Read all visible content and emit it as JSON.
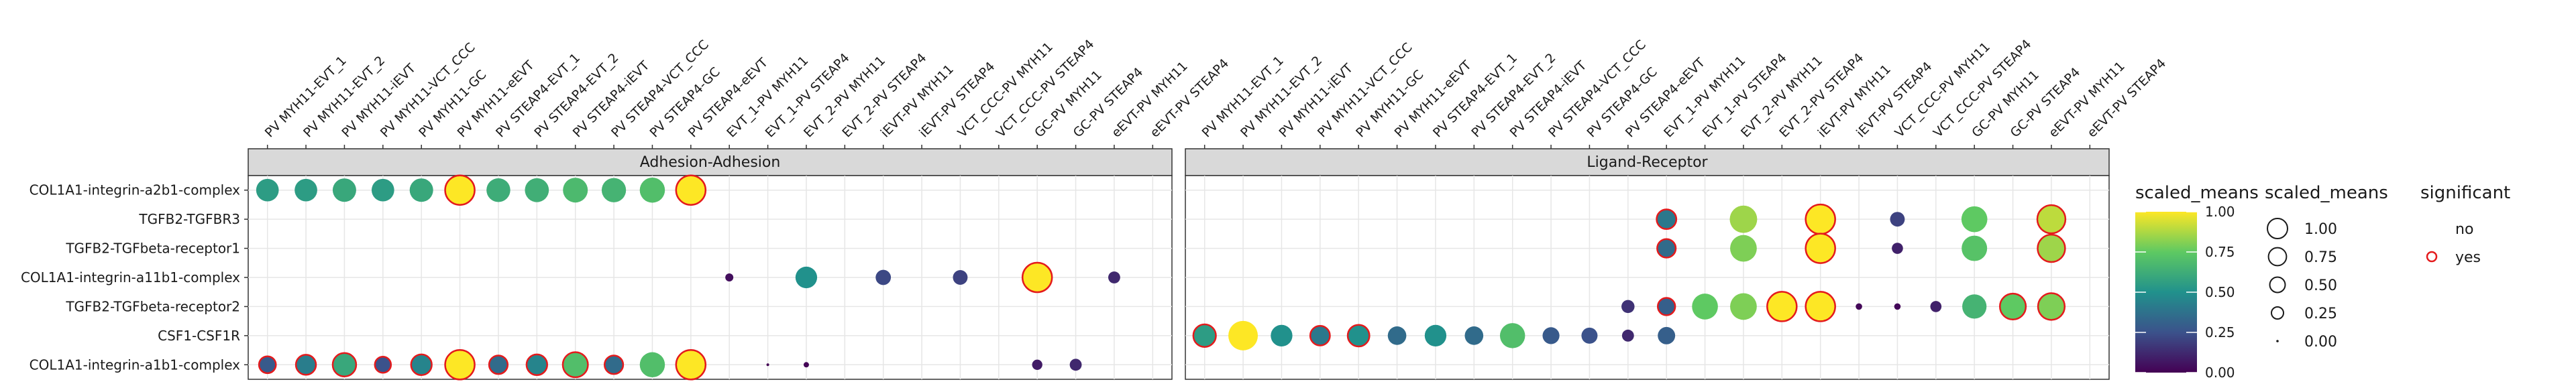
{
  "chart_data": {
    "type": "scatter",
    "title": "",
    "xlabel": "",
    "ylabel": "",
    "y_categories": [
      "COL1A1-integrin-a2b1-complex",
      "TGFB2-TGFBR3",
      "TGFB2-TGFbeta-receptor1",
      "COL1A1-integrin-a11b1-complex",
      "TGFB2-TGFbeta-receptor2",
      "CSF1-CSF1R",
      "COL1A1-integrin-a1b1-complex"
    ],
    "x_categories": [
      "PV MYH11-EVT_1",
      "PV MYH11-EVT_2",
      "PV MYH11-iEVT",
      "PV MYH11-VCT_CCC",
      "PV MYH11-GC",
      "PV MYH11-eEVT",
      "PV STEAP4-EVT_1",
      "PV STEAP4-EVT_2",
      "PV STEAP4-iEVT",
      "PV STEAP4-VCT_CCC",
      "PV STEAP4-GC",
      "PV STEAP4-eEVT",
      "EVT_1-PV MYH11",
      "EVT_1-PV STEAP4",
      "EVT_2-PV MYH11",
      "EVT_2-PV STEAP4",
      "iEVT-PV MYH11",
      "iEVT-PV STEAP4",
      "VCT_CCC-PV MYH11",
      "VCT_CCC-PV STEAP4",
      "GC-PV MYH11",
      "GC-PV STEAP4",
      "eEVT-PV MYH11",
      "eEVT-PV STEAP4"
    ],
    "facets": [
      {
        "name": "Adhesion-Adhesion",
        "points": [
          {
            "y": "COL1A1-integrin-a2b1-complex",
            "x": "PV MYH11-EVT_1",
            "value": 0.55,
            "significant": "no"
          },
          {
            "y": "COL1A1-integrin-a2b1-complex",
            "x": "PV MYH11-EVT_2",
            "value": 0.55,
            "significant": "no"
          },
          {
            "y": "COL1A1-integrin-a2b1-complex",
            "x": "PV MYH11-iEVT",
            "value": 0.6,
            "significant": "no"
          },
          {
            "y": "COL1A1-integrin-a2b1-complex",
            "x": "PV MYH11-VCT_CCC",
            "value": 0.55,
            "significant": "no"
          },
          {
            "y": "COL1A1-integrin-a2b1-complex",
            "x": "PV MYH11-GC",
            "value": 0.6,
            "significant": "no"
          },
          {
            "y": "COL1A1-integrin-a2b1-complex",
            "x": "PV MYH11-eEVT",
            "value": 1.0,
            "significant": "yes"
          },
          {
            "y": "COL1A1-integrin-a2b1-complex",
            "x": "PV STEAP4-EVT_1",
            "value": 0.62,
            "significant": "no"
          },
          {
            "y": "COL1A1-integrin-a2b1-complex",
            "x": "PV STEAP4-EVT_2",
            "value": 0.63,
            "significant": "no"
          },
          {
            "y": "COL1A1-integrin-a2b1-complex",
            "x": "PV STEAP4-iEVT",
            "value": 0.68,
            "significant": "no"
          },
          {
            "y": "COL1A1-integrin-a2b1-complex",
            "x": "PV STEAP4-VCT_CCC",
            "value": 0.65,
            "significant": "no"
          },
          {
            "y": "COL1A1-integrin-a2b1-complex",
            "x": "PV STEAP4-GC",
            "value": 0.7,
            "significant": "no"
          },
          {
            "y": "COL1A1-integrin-a2b1-complex",
            "x": "PV STEAP4-eEVT",
            "value": 1.0,
            "significant": "yes"
          },
          {
            "y": "COL1A1-integrin-a11b1-complex",
            "x": "EVT_1-PV MYH11",
            "value": 0.04,
            "significant": "no"
          },
          {
            "y": "COL1A1-integrin-a11b1-complex",
            "x": "EVT_2-PV MYH11",
            "value": 0.5,
            "significant": "no"
          },
          {
            "y": "COL1A1-integrin-a11b1-complex",
            "x": "iEVT-PV MYH11",
            "value": 0.22,
            "significant": "no"
          },
          {
            "y": "COL1A1-integrin-a11b1-complex",
            "x": "VCT_CCC-PV MYH11",
            "value": 0.2,
            "significant": "no"
          },
          {
            "y": "COL1A1-integrin-a11b1-complex",
            "x": "GC-PV MYH11",
            "value": 1.0,
            "significant": "yes"
          },
          {
            "y": "COL1A1-integrin-a11b1-complex",
            "x": "eEVT-PV MYH11",
            "value": 0.12,
            "significant": "no"
          },
          {
            "y": "COL1A1-integrin-a1b1-complex",
            "x": "PV MYH11-EVT_1",
            "value": 0.28,
            "significant": "yes"
          },
          {
            "y": "COL1A1-integrin-a1b1-complex",
            "x": "PV MYH11-EVT_2",
            "value": 0.42,
            "significant": "yes"
          },
          {
            "y": "COL1A1-integrin-a1b1-complex",
            "x": "PV MYH11-iEVT",
            "value": 0.6,
            "significant": "yes"
          },
          {
            "y": "COL1A1-integrin-a1b1-complex",
            "x": "PV MYH11-VCT_CCC",
            "value": 0.25,
            "significant": "yes"
          },
          {
            "y": "COL1A1-integrin-a1b1-complex",
            "x": "PV MYH11-GC",
            "value": 0.45,
            "significant": "yes"
          },
          {
            "y": "COL1A1-integrin-a1b1-complex",
            "x": "PV MYH11-eEVT",
            "value": 1.0,
            "significant": "yes"
          },
          {
            "y": "COL1A1-integrin-a1b1-complex",
            "x": "PV STEAP4-EVT_1",
            "value": 0.35,
            "significant": "yes"
          },
          {
            "y": "COL1A1-integrin-a1b1-complex",
            "x": "PV STEAP4-EVT_2",
            "value": 0.45,
            "significant": "yes"
          },
          {
            "y": "COL1A1-integrin-a1b1-complex",
            "x": "PV STEAP4-iEVT",
            "value": 0.7,
            "significant": "yes"
          },
          {
            "y": "COL1A1-integrin-a1b1-complex",
            "x": "PV STEAP4-VCT_CCC",
            "value": 0.35,
            "significant": "yes"
          },
          {
            "y": "COL1A1-integrin-a1b1-complex",
            "x": "PV STEAP4-GC",
            "value": 0.7,
            "significant": "no"
          },
          {
            "y": "COL1A1-integrin-a1b1-complex",
            "x": "PV STEAP4-eEVT",
            "value": 1.0,
            "significant": "yes"
          },
          {
            "y": "COL1A1-integrin-a1b1-complex",
            "x": "EVT_1-PV STEAP4",
            "value": 0.0,
            "significant": "no"
          },
          {
            "y": "COL1A1-integrin-a1b1-complex",
            "x": "EVT_2-PV MYH11",
            "value": 0.01,
            "significant": "no"
          },
          {
            "y": "COL1A1-integrin-a1b1-complex",
            "x": "GC-PV MYH11",
            "value": 0.08,
            "significant": "no"
          },
          {
            "y": "COL1A1-integrin-a1b1-complex",
            "x": "GC-PV STEAP4",
            "value": 0.12,
            "significant": "no"
          }
        ]
      },
      {
        "name": "Ligand-Receptor",
        "points": [
          {
            "y": "TGFB2-TGFBR3",
            "x": "EVT_1-PV MYH11",
            "value": 0.4,
            "significant": "yes"
          },
          {
            "y": "TGFB2-TGFBR3",
            "x": "EVT_2-PV MYH11",
            "value": 0.85,
            "significant": "no"
          },
          {
            "y": "TGFB2-TGFBR3",
            "x": "iEVT-PV MYH11",
            "value": 1.0,
            "significant": "yes"
          },
          {
            "y": "TGFB2-TGFBR3",
            "x": "VCT_CCC-PV MYH11",
            "value": 0.2,
            "significant": "no"
          },
          {
            "y": "TGFB2-TGFBR3",
            "x": "GC-PV MYH11",
            "value": 0.75,
            "significant": "no"
          },
          {
            "y": "TGFB2-TGFBR3",
            "x": "eEVT-PV MYH11",
            "value": 0.9,
            "significant": "yes"
          },
          {
            "y": "TGFB2-TGFbeta-receptor1",
            "x": "EVT_1-PV MYH11",
            "value": 0.35,
            "significant": "yes"
          },
          {
            "y": "TGFB2-TGFbeta-receptor1",
            "x": "EVT_2-PV MYH11",
            "value": 0.8,
            "significant": "no"
          },
          {
            "y": "TGFB2-TGFbeta-receptor1",
            "x": "iEVT-PV MYH11",
            "value": 1.0,
            "significant": "yes"
          },
          {
            "y": "TGFB2-TGFbeta-receptor1",
            "x": "VCT_CCC-PV MYH11",
            "value": 0.1,
            "significant": "no"
          },
          {
            "y": "TGFB2-TGFbeta-receptor1",
            "x": "GC-PV MYH11",
            "value": 0.72,
            "significant": "no"
          },
          {
            "y": "TGFB2-TGFbeta-receptor1",
            "x": "eEVT-PV MYH11",
            "value": 0.85,
            "significant": "yes"
          },
          {
            "y": "TGFB2-TGFbeta-receptor2",
            "x": "PV STEAP4-eEVT",
            "value": 0.15,
            "significant": "no"
          },
          {
            "y": "TGFB2-TGFbeta-receptor2",
            "x": "EVT_1-PV MYH11",
            "value": 0.3,
            "significant": "yes"
          },
          {
            "y": "TGFB2-TGFbeta-receptor2",
            "x": "EVT_1-PV STEAP4",
            "value": 0.75,
            "significant": "no"
          },
          {
            "y": "TGFB2-TGFbeta-receptor2",
            "x": "EVT_2-PV MYH11",
            "value": 0.8,
            "significant": "no"
          },
          {
            "y": "TGFB2-TGFbeta-receptor2",
            "x": "EVT_2-PV STEAP4",
            "value": 1.0,
            "significant": "yes"
          },
          {
            "y": "TGFB2-TGFbeta-receptor2",
            "x": "iEVT-PV MYH11",
            "value": 1.0,
            "significant": "yes"
          },
          {
            "y": "TGFB2-TGFbeta-receptor2",
            "x": "iEVT-PV STEAP4",
            "value": 0.02,
            "significant": "no"
          },
          {
            "y": "TGFB2-TGFbeta-receptor2",
            "x": "VCT_CCC-PV MYH11",
            "value": 0.02,
            "significant": "no"
          },
          {
            "y": "TGFB2-TGFbeta-receptor2",
            "x": "VCT_CCC-PV STEAP4",
            "value": 0.1,
            "significant": "no"
          },
          {
            "y": "TGFB2-TGFbeta-receptor2",
            "x": "GC-PV MYH11",
            "value": 0.65,
            "significant": "no"
          },
          {
            "y": "TGFB2-TGFbeta-receptor2",
            "x": "GC-PV STEAP4",
            "value": 0.75,
            "significant": "yes"
          },
          {
            "y": "TGFB2-TGFbeta-receptor2",
            "x": "eEVT-PV MYH11",
            "value": 0.8,
            "significant": "yes"
          },
          {
            "y": "CSF1-CSF1R",
            "x": "PV MYH11-EVT_1",
            "value": 0.55,
            "significant": "yes"
          },
          {
            "y": "CSF1-CSF1R",
            "x": "PV MYH11-EVT_2",
            "value": 1.0,
            "significant": "no"
          },
          {
            "y": "CSF1-CSF1R",
            "x": "PV MYH11-iEVT",
            "value": 0.5,
            "significant": "no"
          },
          {
            "y": "CSF1-CSF1R",
            "x": "PV MYH11-VCT_CCC",
            "value": 0.4,
            "significant": "yes"
          },
          {
            "y": "CSF1-CSF1R",
            "x": "PV MYH11-GC",
            "value": 0.5,
            "significant": "yes"
          },
          {
            "y": "CSF1-CSF1R",
            "x": "PV MYH11-eEVT",
            "value": 0.35,
            "significant": "no"
          },
          {
            "y": "CSF1-CSF1R",
            "x": "PV STEAP4-EVT_1",
            "value": 0.5,
            "significant": "no"
          },
          {
            "y": "CSF1-CSF1R",
            "x": "PV STEAP4-EVT_2",
            "value": 0.35,
            "significant": "no"
          },
          {
            "y": "CSF1-CSF1R",
            "x": "PV STEAP4-iEVT",
            "value": 0.7,
            "significant": "no"
          },
          {
            "y": "CSF1-CSF1R",
            "x": "PV STEAP4-VCT_CCC",
            "value": 0.28,
            "significant": "no"
          },
          {
            "y": "CSF1-CSF1R",
            "x": "PV STEAP4-GC",
            "value": 0.25,
            "significant": "no"
          },
          {
            "y": "CSF1-CSF1R",
            "x": "PV STEAP4-eEVT",
            "value": 0.12,
            "significant": "no"
          },
          {
            "y": "CSF1-CSF1R",
            "x": "EVT_1-PV MYH11",
            "value": 0.3,
            "significant": "no"
          }
        ]
      }
    ],
    "color_scale": {
      "title": "scaled_means",
      "palette": "viridis",
      "limits": [
        0.0,
        1.0
      ],
      "ticks": [
        "1.00",
        "0.75",
        "0.50",
        "0.25",
        "0.00"
      ],
      "colors": [
        "#440154",
        "#3b528b",
        "#21918c",
        "#5ec962",
        "#fde725"
      ]
    },
    "size_scale": {
      "title": "scaled_means",
      "labels": [
        "1.00",
        "0.75",
        "0.50",
        "0.25",
        "0.00"
      ],
      "values": [
        1.0,
        0.75,
        0.5,
        0.25,
        0.0
      ]
    },
    "significance_legend": {
      "title": "significant",
      "labels": [
        "no",
        "yes"
      ],
      "outline_color": "#e41a1c"
    },
    "grid": true,
    "legend_position": "right"
  }
}
